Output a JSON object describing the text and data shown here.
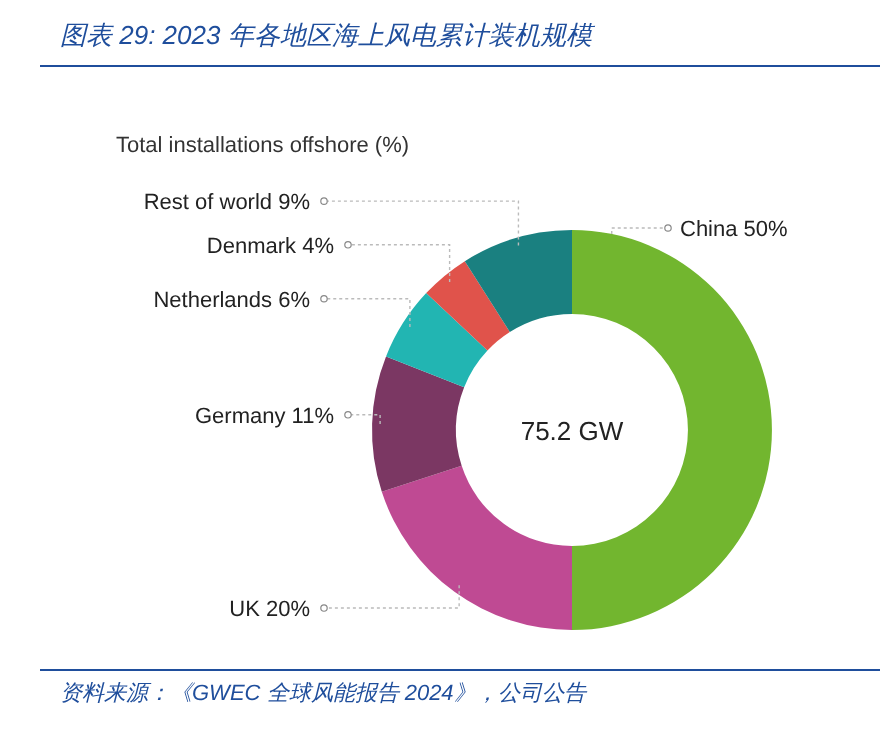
{
  "chart_data": {
    "type": "donut",
    "title": "图表 29: 2023 年各地区海上风电累计装机规模",
    "subtitle": "Total installations offshore (%)",
    "categories": [
      "China",
      "UK",
      "Germany",
      "Netherlands",
      "Denmark",
      "Rest of world"
    ],
    "values": [
      50,
      20,
      11,
      6,
      4,
      9
    ],
    "value_labels": [
      "50%",
      "20%",
      "11%",
      "6%",
      "4%",
      "9%"
    ],
    "colors": [
      "#72b62f",
      "#bf4a93",
      "#7b3763",
      "#22b5b2",
      "#e0534b",
      "#1a8080"
    ],
    "annotations": [
      "75.2 GW",
      "资料来源：《GWEC 全球风能报告 2024》，公司公告"
    ]
  }
}
